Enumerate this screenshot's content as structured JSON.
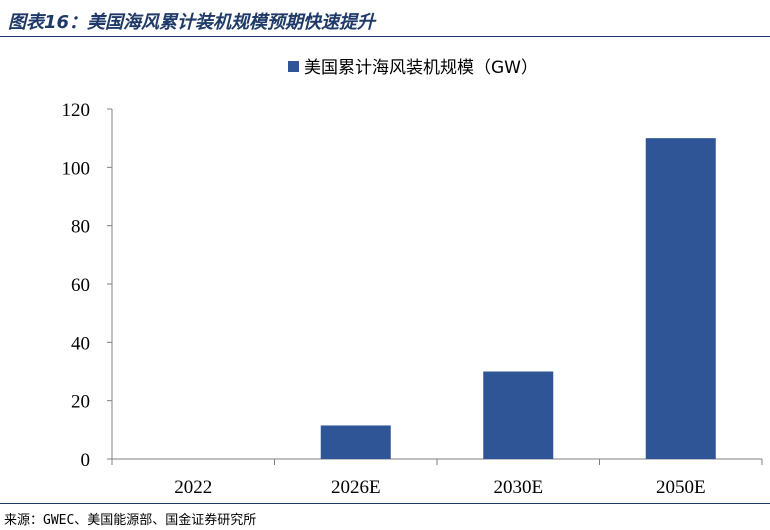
{
  "figure": {
    "title": "图表16：美国海风累计装机规模预期快速提升",
    "source": "来源：GWEC、美国能源部、国金证券研究所"
  },
  "colors": {
    "bar": "#2f5597",
    "title": "#1f3a68",
    "axis": "#808080"
  },
  "chart_data": {
    "type": "bar",
    "categories": [
      "2022",
      "2026E",
      "2030E",
      "2050E"
    ],
    "series": [
      {
        "name": "美国累计海风装机规模（GW）",
        "values": [
          0,
          11.5,
          30,
          110
        ]
      }
    ],
    "ylim": [
      0,
      120
    ],
    "yticks": [
      "0",
      "20",
      "40",
      "60",
      "80",
      "100",
      "120"
    ],
    "grid": false,
    "legend": "top-center"
  }
}
